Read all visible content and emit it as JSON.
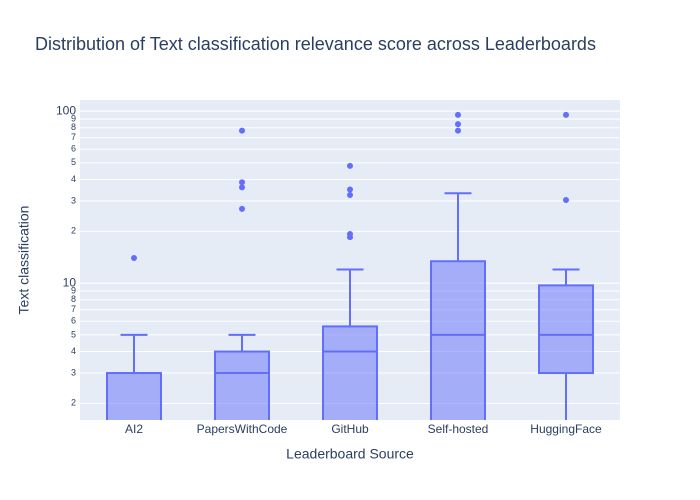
{
  "chart_data": {
    "type": "box",
    "title": "Distribution of Text classification relevance score across Leaderboards",
    "x_label": "Leaderboard Source",
    "y_label": "Text classification",
    "categories": [
      "AI2",
      "PapersWithCode",
      "GitHub",
      "Self-hosted",
      "HuggingFace"
    ],
    "lowerfence": [
      1,
      1,
      1,
      1,
      1
    ],
    "q1": [
      1,
      1,
      1,
      1,
      3
    ],
    "median": [
      1,
      3,
      4,
      5,
      5
    ],
    "q3": [
      3,
      4,
      5.6,
      13.4,
      9.7
    ],
    "upperfence": [
      5,
      5,
      12,
      33.3,
      12
    ],
    "outliers": [
      [
        14
      ],
      [
        27,
        36,
        38.6,
        77
      ],
      [
        18.5,
        19.3,
        32.5,
        35,
        48
      ],
      [
        77,
        84,
        95
      ],
      [
        30.4,
        95
      ]
    ],
    "color": "#636efa",
    "log_y": true,
    "grid": true,
    "ylim": [
      1.6,
      116
    ],
    "yticks": [
      2,
      3,
      4,
      5,
      6,
      7,
      8,
      9,
      10,
      {
        "value": 20,
        "label": "2"
      },
      {
        "value": 30,
        "label": "3"
      },
      {
        "value": 40,
        "label": "4"
      },
      {
        "value": 50,
        "label": "5"
      },
      {
        "value": 60,
        "label": "6"
      },
      {
        "value": 70,
        "label": "7"
      },
      {
        "value": 80,
        "label": "8"
      },
      {
        "value": 90,
        "label": "9"
      },
      100
    ]
  }
}
